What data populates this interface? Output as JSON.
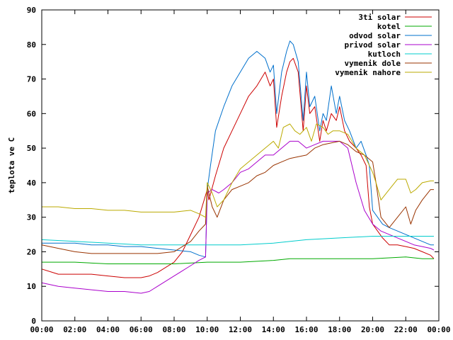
{
  "chart_data": {
    "type": "line",
    "title": "",
    "xlabel": "",
    "ylabel": "teplota ve C",
    "xlim": [
      0,
      24
    ],
    "ylim": [
      0,
      90
    ],
    "grid": false,
    "legend_position": "top-right",
    "x_ticks": [
      {
        "value": 0,
        "label": "00:00"
      },
      {
        "value": 2,
        "label": "02:00"
      },
      {
        "value": 4,
        "label": "04:00"
      },
      {
        "value": 6,
        "label": "06:00"
      },
      {
        "value": 8,
        "label": "08:00"
      },
      {
        "value": 10,
        "label": "10:00"
      },
      {
        "value": 12,
        "label": "12:00"
      },
      {
        "value": 14,
        "label": "14:00"
      },
      {
        "value": 16,
        "label": "16:00"
      },
      {
        "value": 18,
        "label": "18:00"
      },
      {
        "value": 20,
        "label": "20:00"
      },
      {
        "value": 22,
        "label": "22:00"
      },
      {
        "value": 24,
        "label": "00:00"
      }
    ],
    "y_ticks": [
      {
        "value": 0,
        "label": "0"
      },
      {
        "value": 10,
        "label": "10"
      },
      {
        "value": 20,
        "label": "20"
      },
      {
        "value": 30,
        "label": "30"
      },
      {
        "value": 40,
        "label": "40"
      },
      {
        "value": 50,
        "label": "50"
      },
      {
        "value": 60,
        "label": "60"
      },
      {
        "value": 70,
        "label": "70"
      },
      {
        "value": 80,
        "label": "80"
      },
      {
        "value": 90,
        "label": "90"
      }
    ],
    "series": [
      {
        "name": "3ti solar",
        "color": "#cc0000",
        "x": [
          0,
          1,
          2,
          3,
          4,
          5,
          6,
          6.5,
          7,
          8,
          8.5,
          9,
          9.5,
          10,
          10.1,
          10.5,
          11,
          11.5,
          12,
          12.5,
          13,
          13.5,
          13.8,
          14,
          14.2,
          14.5,
          14.8,
          15,
          15.2,
          15.5,
          15.8,
          16,
          16.2,
          16.5,
          16.8,
          17,
          17.2,
          17.5,
          17.8,
          18,
          18.3,
          18.6,
          19,
          19.3,
          19.6,
          19.8,
          20,
          20.3,
          20.6,
          21,
          21.5,
          22,
          22.5,
          23,
          23.5,
          23.7
        ],
        "values": [
          15,
          13.5,
          13.5,
          13.5,
          13,
          12.5,
          12.5,
          13,
          14,
          17,
          20,
          25,
          30,
          38,
          35,
          42,
          50,
          55,
          60,
          65,
          68,
          72,
          68,
          70,
          56,
          65,
          72,
          75,
          76,
          72,
          55,
          68,
          60,
          62,
          52,
          58,
          55,
          60,
          58,
          62,
          55,
          52,
          50,
          48,
          45,
          33,
          28,
          26,
          24,
          22,
          22,
          21.5,
          21,
          20,
          19,
          18
        ]
      },
      {
        "name": "kotel",
        "color": "#00aa00",
        "x": [
          0,
          2,
          4,
          6,
          8,
          10,
          12,
          14,
          15,
          16,
          18,
          20,
          22,
          23,
          23.7
        ],
        "values": [
          17,
          17,
          16.5,
          16.5,
          16.5,
          17,
          17,
          17.5,
          18,
          18,
          18,
          18,
          18.5,
          18,
          18
        ]
      },
      {
        "name": "odvod solar",
        "color": "#0070cc",
        "x": [
          0,
          1,
          2,
          3,
          4,
          5,
          6,
          7,
          8,
          9,
          9.5,
          9.9,
          10,
          10.2,
          10.5,
          11,
          11.5,
          12,
          12.5,
          13,
          13.5,
          13.8,
          14,
          14.2,
          14.5,
          14.8,
          15,
          15.2,
          15.5,
          15.8,
          16,
          16.2,
          16.5,
          16.8,
          17,
          17.2,
          17.5,
          17.8,
          18,
          18.3,
          18.6,
          19,
          19.3,
          19.6,
          19.8,
          20,
          20.3,
          20.6,
          21,
          21.5,
          22,
          22.5,
          23,
          23.5,
          23.7
        ],
        "values": [
          22.5,
          22.5,
          22.5,
          22,
          22,
          21.5,
          21.5,
          21,
          20.5,
          20,
          19,
          18.5,
          38,
          45,
          55,
          62,
          68,
          72,
          76,
          78,
          76,
          72,
          74,
          60,
          72,
          78,
          81,
          80,
          75,
          58,
          72,
          62,
          65,
          55,
          60,
          58,
          68,
          60,
          65,
          58,
          55,
          50,
          52,
          48,
          45,
          32,
          30,
          28,
          27,
          26,
          25,
          24,
          23,
          22,
          22
        ]
      },
      {
        "name": "privod solar",
        "color": "#aa00cc",
        "x": [
          0,
          1,
          2,
          3,
          4,
          5,
          6,
          6.5,
          7,
          8,
          9,
          9.5,
          9.9,
          10,
          10.3,
          10.7,
          11,
          11.5,
          12,
          12.5,
          13,
          13.5,
          14,
          14.5,
          15,
          15.5,
          16,
          16.5,
          17,
          17.5,
          18,
          18.5,
          19,
          19.5,
          20,
          20.5,
          21,
          22,
          22.5,
          23,
          23.5,
          23.7
        ],
        "values": [
          11,
          10,
          9.5,
          9,
          8.5,
          8.5,
          8,
          8.5,
          10,
          13,
          16,
          17.5,
          18.5,
          37,
          38,
          37,
          38,
          40,
          43,
          44,
          46,
          48,
          48,
          50,
          52,
          52,
          50,
          51,
          52,
          52,
          52,
          50,
          40,
          32,
          28,
          26,
          25,
          23,
          22,
          21.5,
          21,
          20.5
        ]
      },
      {
        "name": "kutloch",
        "color": "#00cccc",
        "x": [
          0,
          2,
          4,
          6,
          8,
          10,
          12,
          14,
          16,
          18,
          20,
          22,
          23.7
        ],
        "values": [
          23.5,
          23,
          22.5,
          22,
          22,
          22,
          22,
          22.5,
          23.5,
          24,
          24.5,
          24.5,
          24.5
        ]
      },
      {
        "name": "vymenik dole",
        "color": "#993300",
        "x": [
          0,
          1,
          2,
          3,
          4,
          5,
          6,
          7,
          8,
          8.5,
          9,
          9.5,
          9.9,
          10,
          10.3,
          10.6,
          11,
          11.5,
          12,
          12.5,
          13,
          13.5,
          14,
          14.5,
          15,
          15.5,
          16,
          16.5,
          17,
          17.5,
          18,
          18.5,
          19,
          19.5,
          20,
          20.2,
          20.5,
          21,
          21.5,
          22,
          22.3,
          22.6,
          23,
          23.5,
          23.7
        ],
        "values": [
          22,
          21,
          20,
          19.5,
          19.5,
          19.5,
          19.5,
          19.5,
          20,
          21.5,
          23,
          26,
          28,
          39,
          33,
          30,
          35,
          38,
          39,
          40,
          42,
          43,
          45,
          46,
          47,
          47.5,
          48,
          50,
          51,
          51.5,
          52,
          51,
          49,
          48,
          46,
          40,
          30,
          27,
          30,
          33,
          28,
          32,
          35,
          38,
          38
        ]
      },
      {
        "name": "vymenik nahore",
        "color": "#bbaa00",
        "x": [
          0,
          1,
          2,
          3,
          4,
          5,
          6,
          7,
          8,
          9,
          9.5,
          9.9,
          10,
          10.3,
          10.6,
          11,
          11.5,
          12,
          12.5,
          13,
          13.5,
          14,
          14.3,
          14.6,
          15,
          15.3,
          15.6,
          16,
          16.3,
          16.6,
          17,
          17.3,
          17.6,
          18,
          18.5,
          19,
          19.5,
          20,
          20.2,
          20.5,
          21,
          21.5,
          22,
          22.3,
          22.6,
          23,
          23.5,
          23.7
        ],
        "values": [
          33,
          33,
          32.5,
          32.5,
          32,
          32,
          31.5,
          31.5,
          31.5,
          32,
          31,
          30,
          40,
          37,
          33,
          35,
          40,
          44,
          46,
          48,
          50,
          52,
          50,
          56,
          57,
          55,
          54,
          56,
          52,
          57,
          56,
          54,
          55,
          55,
          54,
          50,
          48,
          43,
          40,
          35,
          38,
          41,
          41,
          37,
          38,
          40,
          40.5,
          40.5
        ]
      }
    ]
  }
}
